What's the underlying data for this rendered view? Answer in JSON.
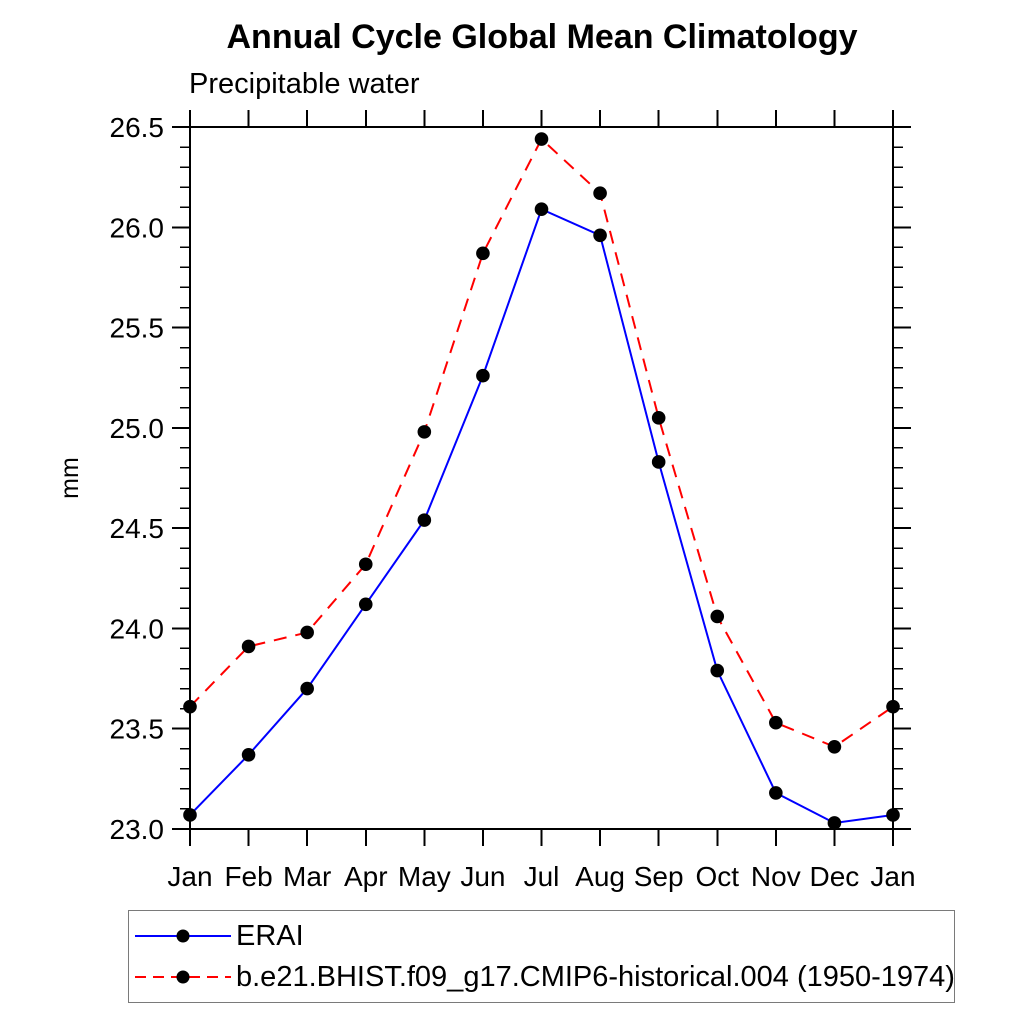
{
  "page": {
    "background_color": "#ffffff",
    "text_color": "#000000"
  },
  "chart_data": {
    "type": "line",
    "title": "Annual Cycle Global Mean Climatology",
    "subtitle": "Precipitable water",
    "xlabel": "",
    "ylabel": "mm",
    "categories": [
      "Jan",
      "Feb",
      "Mar",
      "Apr",
      "May",
      "Jun",
      "Jul",
      "Aug",
      "Sep",
      "Oct",
      "Nov",
      "Dec",
      "Jan"
    ],
    "ylim": [
      23.0,
      26.5
    ],
    "ytick_labels": [
      "23.0",
      "23.5",
      "24.0",
      "24.5",
      "25.0",
      "25.5",
      "26.0",
      "26.5"
    ],
    "ytick_step": 0.5,
    "y_minor_step": 0.1,
    "grid": false,
    "legend_position": "bottom-left-box",
    "axis_color": "#000000",
    "marker_shape": "filled-circle",
    "marker_color": "#000000",
    "series": [
      {
        "name": "ERAI",
        "color": "#0000ff",
        "line_style": "solid",
        "values": [
          23.07,
          23.37,
          23.7,
          24.12,
          24.54,
          25.26,
          26.09,
          25.96,
          24.83,
          23.79,
          23.18,
          23.03,
          23.07
        ]
      },
      {
        "name": "b.e21.BHIST.f09_g17.CMIP6-historical.004 (1950-1974)",
        "color": "#ff0000",
        "line_style": "dashed",
        "values": [
          23.61,
          23.91,
          23.98,
          24.32,
          24.98,
          25.87,
          26.44,
          26.17,
          25.05,
          24.06,
          23.53,
          23.41,
          23.61
        ]
      }
    ]
  }
}
